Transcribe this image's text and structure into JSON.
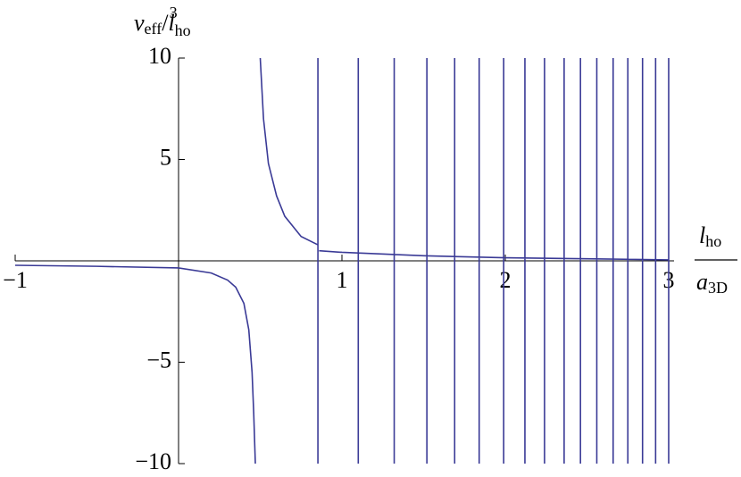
{
  "chart_data": {
    "type": "line",
    "ylabel": [
      "v",
      "eff",
      "/",
      "l",
      "ho",
      "3"
    ],
    "xlabel": [
      "l",
      "ho",
      "a",
      "3D"
    ],
    "xlim": [
      -1,
      3
    ],
    "ylim": [
      -10,
      10
    ],
    "xticks": [
      {
        "value": -1,
        "label": "−1"
      },
      1,
      2,
      3
    ],
    "yticks": [
      {
        "value": -10,
        "label": "−10"
      },
      {
        "value": -5,
        "label": "−5"
      },
      5,
      10
    ],
    "series": [
      {
        "color": "#3a3a96",
        "x": [
          -1,
          -0.5,
          0,
          0.2,
          0.3,
          0.35,
          0.4,
          0.43,
          0.45,
          0.46,
          0.47,
          null,
          0.5,
          0.52,
          0.55,
          0.6,
          0.65,
          0.75,
          0.85,
          null,
          0.86,
          1,
          1.5,
          2,
          2.5,
          3,
          null,
          0.853,
          0.853,
          null,
          1.1,
          1.1,
          null,
          1.32,
          1.32,
          null,
          1.52,
          1.52,
          null,
          1.69,
          1.69,
          null,
          1.84,
          1.84,
          null,
          1.99,
          1.99,
          null,
          2.12,
          2.12,
          null,
          2.24,
          2.24,
          null,
          2.36,
          2.36,
          null,
          2.46,
          2.46,
          null,
          2.56,
          2.56,
          null,
          2.66,
          2.66,
          null,
          2.75,
          2.75,
          null,
          2.84,
          2.84,
          null,
          2.92,
          2.92,
          null,
          3,
          3
        ],
        "values": [
          -0.22,
          -0.27,
          -0.35,
          -0.6,
          -0.95,
          -1.3,
          -2.1,
          -3.4,
          -5.5,
          -7.5,
          -10,
          null,
          10,
          7,
          4.8,
          3.2,
          2.2,
          1.2,
          0.8,
          null,
          0.5,
          0.42,
          0.25,
          0.15,
          0.1,
          0.05,
          null,
          10,
          -10,
          null,
          10,
          -10,
          null,
          10,
          -10,
          null,
          10,
          -10,
          null,
          10,
          -10,
          null,
          10,
          -10,
          null,
          10,
          -10,
          null,
          10,
          -10,
          null,
          10,
          -10,
          null,
          10,
          -10,
          null,
          10,
          -10,
          null,
          10,
          -10,
          null,
          10,
          -10,
          null,
          10,
          -10,
          null,
          10,
          -10,
          null,
          10,
          -10,
          null,
          10,
          -10
        ]
      }
    ]
  }
}
